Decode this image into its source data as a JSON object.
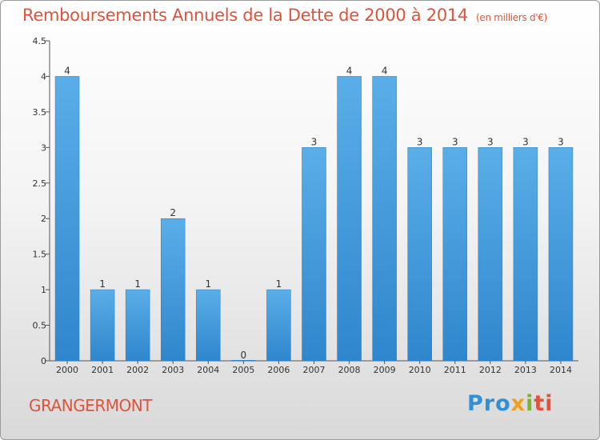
{
  "header": {
    "title": "Remboursements Annuels de la Dette de 2000 à 2014",
    "unit": "(en milliers d'€)"
  },
  "footer": {
    "commune": "GRANGERMONT",
    "logo_parts": [
      "Pro",
      "x",
      "i",
      "ti"
    ]
  },
  "colors": {
    "bar": "#3b96d9",
    "bar_light": "#5aaee8",
    "title": "#e0533a"
  },
  "chart_data": {
    "type": "bar",
    "title": "Remboursements Annuels de la Dette de 2000 à 2014",
    "xlabel": "",
    "ylabel": "",
    "categories": [
      "2000",
      "2001",
      "2002",
      "2003",
      "2004",
      "2005",
      "2006",
      "2007",
      "2008",
      "2009",
      "2010",
      "2011",
      "2012",
      "2013",
      "2014"
    ],
    "values": [
      4,
      1,
      1,
      2,
      1,
      0,
      1,
      3,
      4,
      4,
      3,
      3,
      3,
      3,
      3
    ],
    "ylim": [
      0,
      4.5
    ],
    "yticks": [
      "0",
      "0.5",
      "1",
      "1.5",
      "2",
      "2.5",
      "3",
      "3.5",
      "4",
      "4.5"
    ],
    "grid": false,
    "data_labels": true
  }
}
